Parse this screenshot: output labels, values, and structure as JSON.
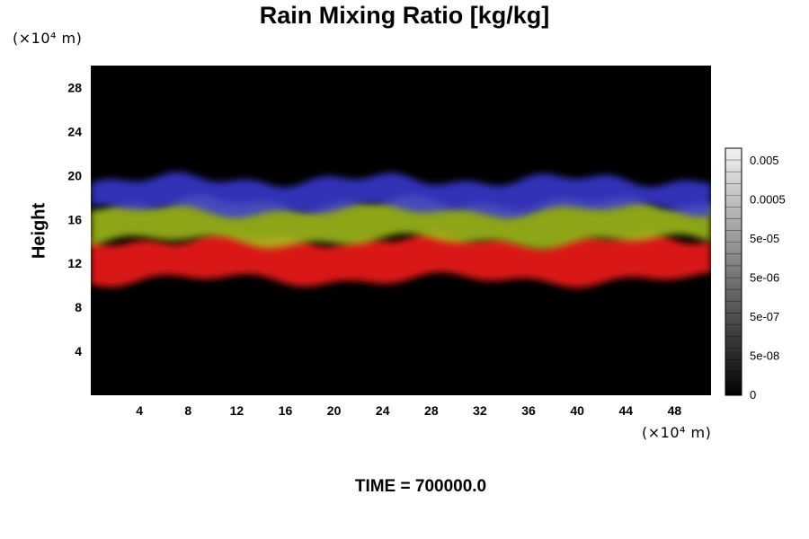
{
  "chart_data": {
    "type": "heatmap",
    "title": "Rain Mixing Ratio [kg/kg]",
    "ylabel": "Height",
    "y_unit_label": "(×10⁴ m)",
    "x_unit_label": "(×10⁴ m)",
    "x_ticks": [
      4,
      8,
      12,
      16,
      20,
      24,
      28,
      32,
      36,
      40,
      44,
      48
    ],
    "y_ticks": [
      4,
      8,
      12,
      16,
      20,
      24,
      28
    ],
    "xlim": [
      0,
      51
    ],
    "ylim": [
      0,
      30
    ],
    "colorbar_labels": [
      "0.005",
      "0.0005",
      "5e-05",
      "5e-06",
      "5e-07",
      "5e-08",
      "0"
    ],
    "time_label": "TIME = 700000.0",
    "bands": [
      {
        "color": "#ff1a1a",
        "y_range": [
          10.5,
          14.2
        ]
      },
      {
        "color": "#a6c21c",
        "y_range": [
          14.0,
          17.5
        ]
      },
      {
        "color": "#3a3ad8",
        "y_range": [
          16.8,
          19.6
        ]
      }
    ],
    "background_color": "#000000"
  }
}
